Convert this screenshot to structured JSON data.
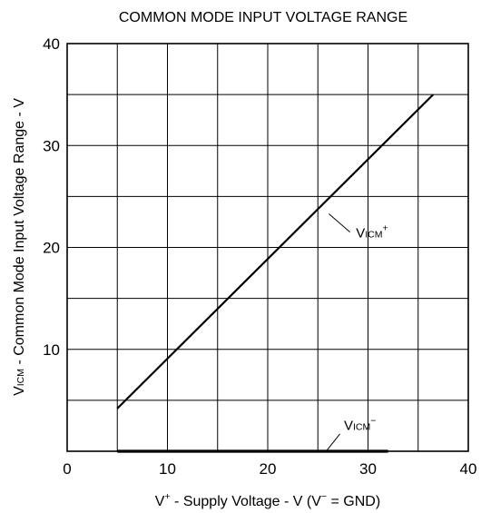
{
  "chart_data": {
    "type": "line",
    "title": "COMMON MODE INPUT VOLTAGE RANGE",
    "xlabel": {
      "prefix": "V",
      "sup": "+",
      "middle": " - Supply Voltage - V (V",
      "sup2": "−",
      "suffix": " = GND)"
    },
    "ylabel": {
      "prefix": "V",
      "sub": "ICM",
      "suffix": " - Common Mode Input Voltage Range - V"
    },
    "xlim": [
      0,
      40
    ],
    "ylim": [
      0,
      40
    ],
    "x_ticks": [
      "0",
      "10",
      "20",
      "30",
      "40"
    ],
    "y_ticks": [
      "10",
      "20",
      "30",
      "40"
    ],
    "grid": true,
    "grid_step": 5,
    "series": [
      {
        "name": "VICM+",
        "label": {
          "main": "V",
          "sub": "ICM",
          "sup": "+"
        },
        "x": [
          5,
          36.5
        ],
        "y": [
          4.2,
          35
        ],
        "color": "#000000"
      },
      {
        "name": "VICM−",
        "label": {
          "main": "V",
          "sub": "ICM",
          "sup": "−"
        },
        "x": [
          5,
          32
        ],
        "y": [
          0,
          0
        ],
        "color": "#000000"
      }
    ]
  }
}
